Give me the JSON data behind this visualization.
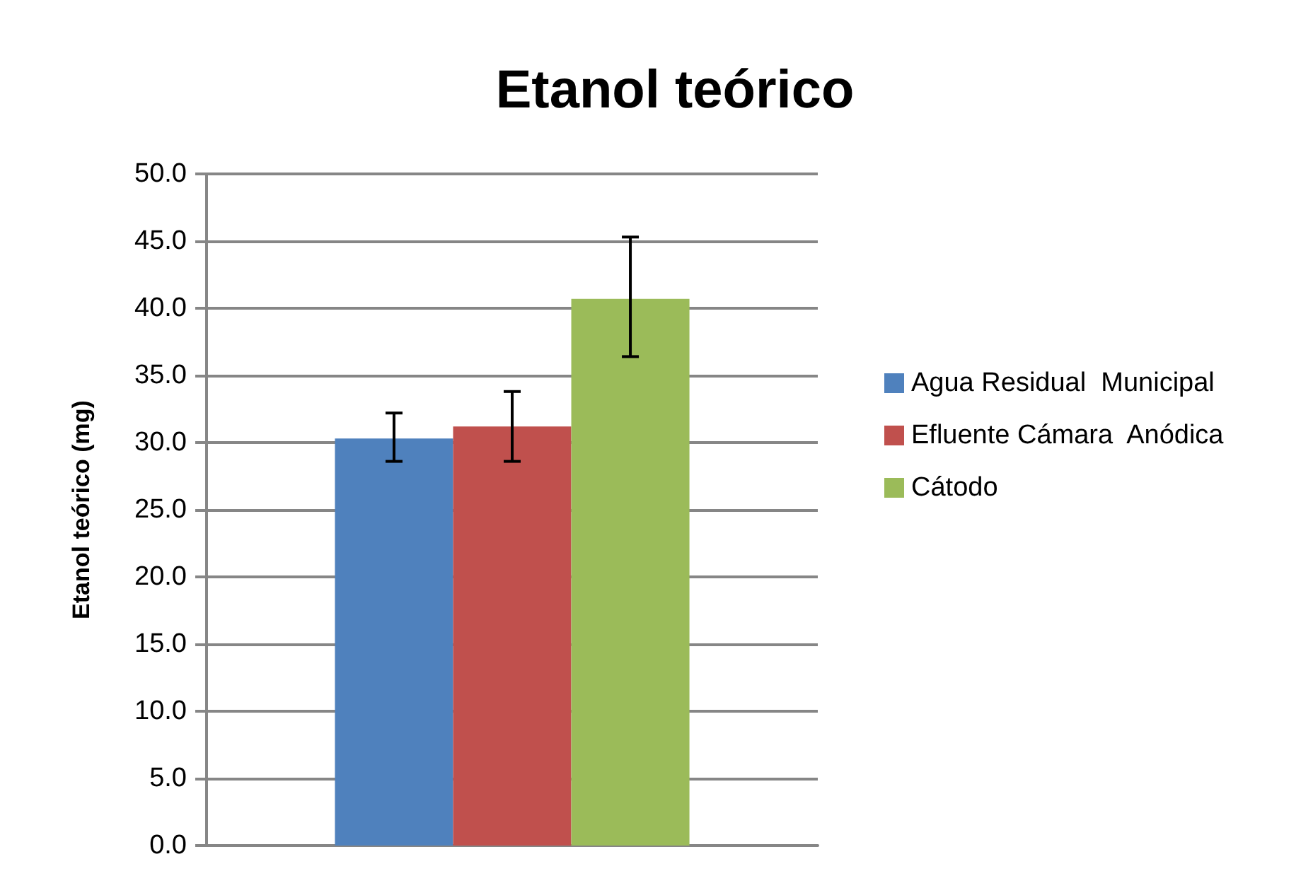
{
  "chart_data": {
    "type": "bar",
    "title": "Etanol teórico",
    "ylabel": "Etanol teórico (mg)",
    "categories": [
      null
    ],
    "series": [
      {
        "name": "Agua Residual  Municipal",
        "color": "#4f81bd",
        "values": [
          30.3
        ],
        "errors": [
          [
            28.6,
            32.2
          ]
        ]
      },
      {
        "name": "Efluente Cámara  Anódica",
        "color": "#c0504d",
        "values": [
          31.2
        ],
        "errors": [
          [
            28.6,
            33.8
          ]
        ]
      },
      {
        "name": "Cátodo",
        "color": "#9bbb59",
        "values": [
          40.7
        ],
        "errors": [
          [
            36.4,
            45.3
          ]
        ]
      }
    ],
    "ylim": [
      0,
      50
    ],
    "yticks": [
      {
        "value": 0,
        "label": "0.0"
      },
      {
        "value": 5,
        "label": "5.0"
      },
      {
        "value": 10,
        "label": "10.0"
      },
      {
        "value": 15,
        "label": "15.0"
      },
      {
        "value": 20,
        "label": "20.0"
      },
      {
        "value": 25,
        "label": "25.0"
      },
      {
        "value": 30,
        "label": "30.0"
      },
      {
        "value": 35,
        "label": "35.0"
      },
      {
        "value": 40,
        "label": "40.0"
      },
      {
        "value": 45,
        "label": "45.0"
      },
      {
        "value": 50,
        "label": "50.0"
      }
    ],
    "grid": "y",
    "legend": "right"
  }
}
